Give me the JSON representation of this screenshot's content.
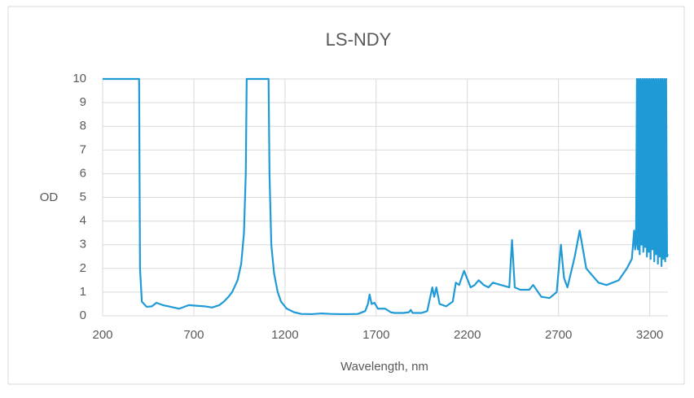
{
  "chart_data": {
    "type": "line",
    "title": "LS-NDY",
    "x_label": "Wavelength, nm",
    "y_label": "OD",
    "color": "#1f9ad6",
    "grid": true,
    "xlim": [
      200,
      3300
    ],
    "xticks": [
      200,
      700,
      1200,
      1700,
      2200,
      2700,
      3200
    ],
    "ylim": [
      0,
      10
    ],
    "yticks": [
      0,
      1,
      2,
      3,
      4,
      5,
      6,
      7,
      8,
      9,
      10
    ],
    "x": [
      200,
      400,
      405,
      415,
      441,
      470,
      495,
      530,
      560,
      620,
      673,
      720,
      760,
      800,
      840,
      865,
      890,
      910,
      940,
      960,
      975,
      985,
      990,
      1110,
      1115,
      1125,
      1140,
      1160,
      1178,
      1210,
      1250,
      1289,
      1350,
      1400,
      1450,
      1500,
      1550,
      1600,
      1640,
      1655,
      1664,
      1675,
      1690,
      1710,
      1750,
      1780,
      1800,
      1850,
      1880,
      1890,
      1900,
      1950,
      1980,
      2008,
      2018,
      2030,
      2048,
      2084,
      2120,
      2137,
      2155,
      2182,
      2218,
      2240,
      2262,
      2290,
      2316,
      2340,
      2430,
      2445,
      2460,
      2490,
      2539,
      2561,
      2606,
      2651,
      2690,
      2713,
      2730,
      2749,
      2789,
      2816,
      2852,
      2919,
      2963,
      3030,
      3075,
      3102,
      3115,
      3120,
      3125,
      3130,
      3135,
      3140,
      3145,
      3150,
      3155,
      3160,
      3165,
      3170,
      3175,
      3180,
      3185,
      3190,
      3195,
      3200,
      3205,
      3210,
      3215,
      3220,
      3225,
      3230,
      3235,
      3240,
      3245,
      3250,
      3255,
      3260,
      3265,
      3270,
      3275,
      3280,
      3285,
      3290,
      3295,
      3300
    ],
    "values": [
      10,
      10,
      2,
      0.6,
      0.38,
      0.4,
      0.55,
      0.45,
      0.4,
      0.3,
      0.45,
      0.42,
      0.4,
      0.35,
      0.45,
      0.6,
      0.8,
      1.0,
      1.5,
      2.2,
      3.5,
      6,
      10,
      10,
      6,
      3,
      1.8,
      1.0,
      0.6,
      0.3,
      0.15,
      0.08,
      0.07,
      0.1,
      0.08,
      0.07,
      0.07,
      0.08,
      0.2,
      0.5,
      0.9,
      0.5,
      0.55,
      0.3,
      0.3,
      0.15,
      0.12,
      0.12,
      0.15,
      0.25,
      0.12,
      0.12,
      0.2,
      1.2,
      0.8,
      1.2,
      0.5,
      0.4,
      0.6,
      1.4,
      1.3,
      1.9,
      1.2,
      1.3,
      1.5,
      1.3,
      1.2,
      1.4,
      1.2,
      3.2,
      1.2,
      1.1,
      1.1,
      1.3,
      0.8,
      0.75,
      1.0,
      3.0,
      1.6,
      1.2,
      2.5,
      3.6,
      2.0,
      1.4,
      1.3,
      1.5,
      2.0,
      2.4,
      3.6,
      2.8,
      3,
      10,
      2.8,
      10,
      2.6,
      10,
      3,
      10,
      2.7,
      10,
      2.9,
      10,
      2.5,
      10,
      2.7,
      10,
      2.4,
      10,
      2.8,
      10,
      2.3,
      10,
      2.6,
      10,
      2.2,
      10,
      2.5,
      10,
      2.1,
      10,
      2.4,
      10,
      2.3,
      10,
      2.5,
      2.6
    ]
  }
}
